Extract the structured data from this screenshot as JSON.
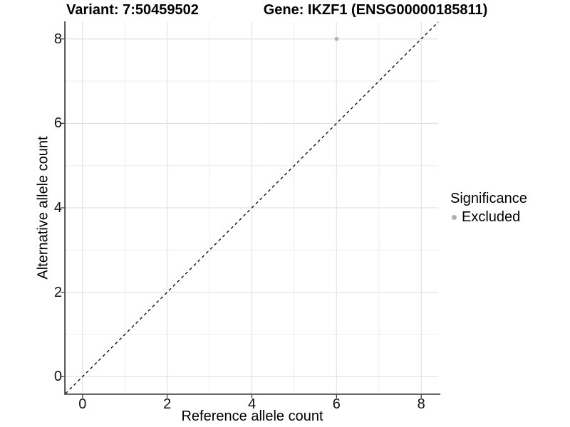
{
  "chart_data": {
    "type": "scatter",
    "title_left": "Variant: 7:50459502",
    "title_right": "Gene: IKZF1 (ENSG00000185811)",
    "xlabel": "Reference allele count",
    "ylabel": "Alternative allele count",
    "xlim": [
      -0.4,
      8.4
    ],
    "ylim": [
      -0.4,
      8.4
    ],
    "x_ticks": [
      "0",
      "2",
      "4",
      "6",
      "8"
    ],
    "y_ticks": [
      "0",
      "2",
      "4",
      "6",
      "8"
    ],
    "x_tick_values": [
      0,
      2,
      4,
      6,
      8
    ],
    "y_tick_values": [
      0,
      2,
      4,
      6,
      8
    ],
    "x_minor": [
      1,
      3,
      5,
      7
    ],
    "y_minor": [
      1,
      3,
      5,
      7
    ],
    "grid": true,
    "legend_position": "right",
    "identity_line": {
      "style": "dashed",
      "from": [
        -0.4,
        -0.4
      ],
      "to": [
        8.4,
        8.4
      ]
    },
    "series": [
      {
        "name": "Excluded",
        "points": [
          {
            "x": 6,
            "y": 8
          }
        ]
      }
    ],
    "legend": {
      "title": "Significance",
      "items": [
        {
          "label": "Excluded",
          "color": "#b0b0b0"
        }
      ]
    },
    "colors": {
      "point": "#b0b0b0",
      "grid_major": "#e3e3e3",
      "grid_minor": "#ededed",
      "axis_line": "#404040",
      "tick_mark": "#333333",
      "identity_line": "#000000"
    }
  }
}
